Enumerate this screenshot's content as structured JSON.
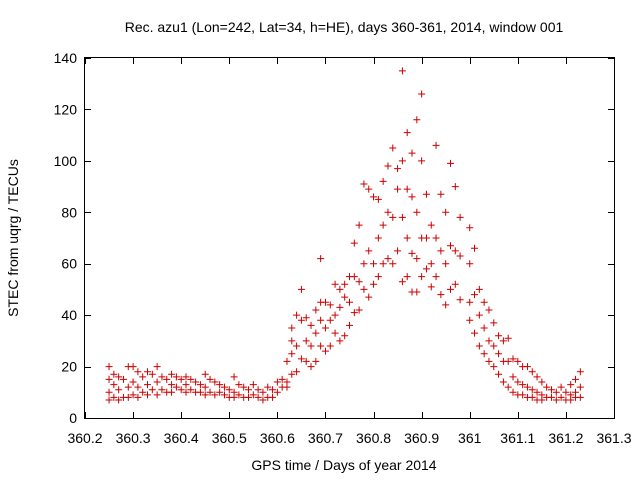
{
  "chart_data": {
    "type": "scatter",
    "title": "Rec. azu1 (Lon=242, Lat=34, h=HE), days 360-361, 2014, window 001",
    "xlabel": "GPS time / Days of year 2014",
    "ylabel": "STEC from uqrg / TECUs",
    "xlim": [
      360.2,
      361.3
    ],
    "ylim": [
      0,
      140
    ],
    "xticks": [
      360.2,
      360.3,
      360.4,
      360.5,
      360.6,
      360.7,
      360.8,
      360.9,
      361,
      361.1,
      361.2,
      361.3
    ],
    "xtick_labels": [
      "360.2",
      "360.3",
      "360.4",
      "360.5",
      "360.6",
      "360.7",
      "360.8",
      "360.9",
      "361",
      "361.1",
      "361.2",
      "361.3"
    ],
    "yticks": [
      0,
      20,
      40,
      60,
      80,
      100,
      120,
      140
    ],
    "ytick_labels": [
      "0",
      "20",
      "40",
      "60",
      "80",
      "100",
      "120",
      "140"
    ],
    "grid": false,
    "legend": "none",
    "marker": "plus",
    "color": "#cc0000",
    "series": [
      {
        "name": "STEC",
        "points": [
          [
            360.25,
            20
          ],
          [
            360.25,
            15
          ],
          [
            360.25,
            10
          ],
          [
            360.25,
            7
          ],
          [
            360.26,
            17
          ],
          [
            360.26,
            13
          ],
          [
            360.26,
            8
          ],
          [
            360.27,
            16
          ],
          [
            360.27,
            11
          ],
          [
            360.27,
            7
          ],
          [
            360.28,
            15
          ],
          [
            360.28,
            8
          ],
          [
            360.29,
            20
          ],
          [
            360.29,
            12
          ],
          [
            360.29,
            8
          ],
          [
            360.3,
            20
          ],
          [
            360.3,
            14
          ],
          [
            360.3,
            9
          ],
          [
            360.31,
            18
          ],
          [
            360.31,
            12
          ],
          [
            360.31,
            8
          ],
          [
            360.32,
            16
          ],
          [
            360.32,
            10
          ],
          [
            360.33,
            18
          ],
          [
            360.33,
            13
          ],
          [
            360.33,
            9
          ],
          [
            360.34,
            17
          ],
          [
            360.34,
            11
          ],
          [
            360.35,
            20
          ],
          [
            360.35,
            14
          ],
          [
            360.35,
            9
          ],
          [
            360.36,
            16
          ],
          [
            360.36,
            11
          ],
          [
            360.37,
            15
          ],
          [
            360.37,
            10
          ],
          [
            360.38,
            17
          ],
          [
            360.38,
            13
          ],
          [
            360.38,
            10
          ],
          [
            360.39,
            16
          ],
          [
            360.39,
            12
          ],
          [
            360.4,
            15
          ],
          [
            360.4,
            11
          ],
          [
            360.41,
            16
          ],
          [
            360.41,
            13
          ],
          [
            360.41,
            10
          ],
          [
            360.42,
            15
          ],
          [
            360.42,
            11
          ],
          [
            360.43,
            14
          ],
          [
            360.43,
            10
          ],
          [
            360.44,
            13
          ],
          [
            360.44,
            10
          ],
          [
            360.45,
            17
          ],
          [
            360.45,
            12
          ],
          [
            360.45,
            9
          ],
          [
            360.46,
            15
          ],
          [
            360.46,
            10
          ],
          [
            360.47,
            14
          ],
          [
            360.47,
            9
          ],
          [
            360.48,
            13
          ],
          [
            360.48,
            10
          ],
          [
            360.49,
            12
          ],
          [
            360.49,
            9
          ],
          [
            360.5,
            11
          ],
          [
            360.5,
            8
          ],
          [
            360.51,
            16
          ],
          [
            360.51,
            10
          ],
          [
            360.51,
            8
          ],
          [
            360.52,
            13
          ],
          [
            360.52,
            9
          ],
          [
            360.53,
            12
          ],
          [
            360.53,
            8
          ],
          [
            360.54,
            11
          ],
          [
            360.54,
            8
          ],
          [
            360.55,
            13
          ],
          [
            360.55,
            9
          ],
          [
            360.56,
            11
          ],
          [
            360.56,
            8
          ],
          [
            360.57,
            10
          ],
          [
            360.57,
            7
          ],
          [
            360.58,
            12
          ],
          [
            360.58,
            8
          ],
          [
            360.59,
            11
          ],
          [
            360.59,
            8
          ],
          [
            360.6,
            14
          ],
          [
            360.6,
            10
          ],
          [
            360.61,
            15
          ],
          [
            360.61,
            12
          ],
          [
            360.62,
            22
          ],
          [
            360.62,
            14
          ],
          [
            360.62,
            12
          ],
          [
            360.63,
            35
          ],
          [
            360.63,
            30
          ],
          [
            360.63,
            25
          ],
          [
            360.63,
            17
          ],
          [
            360.64,
            40
          ],
          [
            360.64,
            28
          ],
          [
            360.64,
            18
          ],
          [
            360.65,
            50
          ],
          [
            360.65,
            38
          ],
          [
            360.65,
            23
          ],
          [
            360.66,
            39
          ],
          [
            360.66,
            30
          ],
          [
            360.66,
            22
          ],
          [
            360.67,
            36
          ],
          [
            360.67,
            28
          ],
          [
            360.67,
            20
          ],
          [
            360.68,
            42
          ],
          [
            360.68,
            33
          ],
          [
            360.68,
            22
          ],
          [
            360.69,
            62
          ],
          [
            360.69,
            45
          ],
          [
            360.69,
            38
          ],
          [
            360.69,
            28
          ],
          [
            360.7,
            45
          ],
          [
            360.7,
            35
          ],
          [
            360.7,
            26
          ],
          [
            360.71,
            44
          ],
          [
            360.71,
            38
          ],
          [
            360.71,
            28
          ],
          [
            360.72,
            52
          ],
          [
            360.72,
            40
          ],
          [
            360.72,
            33
          ],
          [
            360.73,
            50
          ],
          [
            360.73,
            43
          ],
          [
            360.73,
            30
          ],
          [
            360.74,
            52
          ],
          [
            360.74,
            47
          ],
          [
            360.74,
            32
          ],
          [
            360.75,
            55
          ],
          [
            360.75,
            45
          ],
          [
            360.75,
            36
          ],
          [
            360.76,
            68
          ],
          [
            360.76,
            55
          ],
          [
            360.76,
            41
          ],
          [
            360.77,
            75
          ],
          [
            360.77,
            53
          ],
          [
            360.77,
            42
          ],
          [
            360.78,
            91
          ],
          [
            360.78,
            60
          ],
          [
            360.78,
            50
          ],
          [
            360.79,
            89
          ],
          [
            360.79,
            65
          ],
          [
            360.79,
            47
          ],
          [
            360.8,
            86
          ],
          [
            360.8,
            60
          ],
          [
            360.8,
            52
          ],
          [
            360.81,
            85
          ],
          [
            360.81,
            70
          ],
          [
            360.81,
            55
          ],
          [
            360.82,
            92
          ],
          [
            360.82,
            75
          ],
          [
            360.82,
            60
          ],
          [
            360.83,
            98
          ],
          [
            360.83,
            80
          ],
          [
            360.83,
            62
          ],
          [
            360.84,
            105
          ],
          [
            360.84,
            78
          ],
          [
            360.84,
            60
          ],
          [
            360.85,
            97
          ],
          [
            360.85,
            89
          ],
          [
            360.85,
            65
          ],
          [
            360.86,
            135
          ],
          [
            360.86,
            100
          ],
          [
            360.86,
            78
          ],
          [
            360.86,
            53
          ],
          [
            360.87,
            111
          ],
          [
            360.87,
            89
          ],
          [
            360.87,
            70
          ],
          [
            360.87,
            55
          ],
          [
            360.88,
            103
          ],
          [
            360.88,
            86
          ],
          [
            360.88,
            64
          ],
          [
            360.88,
            49
          ],
          [
            360.89,
            116
          ],
          [
            360.89,
            80
          ],
          [
            360.89,
            62
          ],
          [
            360.89,
            49
          ],
          [
            360.9,
            126
          ],
          [
            360.9,
            100
          ],
          [
            360.9,
            70
          ],
          [
            360.9,
            55
          ],
          [
            360.91,
            87
          ],
          [
            360.91,
            70
          ],
          [
            360.91,
            58
          ],
          [
            360.92,
            75
          ],
          [
            360.92,
            60
          ],
          [
            360.92,
            51
          ],
          [
            360.93,
            106
          ],
          [
            360.93,
            70
          ],
          [
            360.93,
            55
          ],
          [
            360.94,
            87
          ],
          [
            360.94,
            65
          ],
          [
            360.94,
            48
          ],
          [
            360.95,
            80
          ],
          [
            360.95,
            60
          ],
          [
            360.95,
            44
          ],
          [
            360.96,
            99
          ],
          [
            360.96,
            67
          ],
          [
            360.96,
            50
          ],
          [
            360.97,
            90
          ],
          [
            360.97,
            65
          ],
          [
            360.97,
            52
          ],
          [
            360.98,
            78
          ],
          [
            360.98,
            63
          ],
          [
            360.98,
            46
          ],
          [
            361.0,
            74
          ],
          [
            361.0,
            60
          ],
          [
            361.0,
            45
          ],
          [
            361.0,
            38
          ],
          [
            361.01,
            66
          ],
          [
            361.01,
            48
          ],
          [
            361.01,
            33
          ],
          [
            361.02,
            50
          ],
          [
            361.02,
            40
          ],
          [
            361.02,
            28
          ],
          [
            361.03,
            45
          ],
          [
            361.03,
            35
          ],
          [
            361.03,
            25
          ],
          [
            361.04,
            42
          ],
          [
            361.04,
            30
          ],
          [
            361.04,
            22
          ],
          [
            361.05,
            37
          ],
          [
            361.05,
            28
          ],
          [
            361.05,
            20
          ],
          [
            361.06,
            32
          ],
          [
            361.06,
            25
          ],
          [
            361.06,
            17
          ],
          [
            361.07,
            30
          ],
          [
            361.07,
            22
          ],
          [
            361.07,
            14
          ],
          [
            361.08,
            31
          ],
          [
            361.08,
            22
          ],
          [
            361.08,
            12
          ],
          [
            361.09,
            23
          ],
          [
            361.09,
            16
          ],
          [
            361.09,
            10
          ],
          [
            361.1,
            22
          ],
          [
            361.1,
            14
          ],
          [
            361.1,
            9
          ],
          [
            361.11,
            20
          ],
          [
            361.11,
            13
          ],
          [
            361.11,
            9
          ],
          [
            361.12,
            20
          ],
          [
            361.12,
            12
          ],
          [
            361.12,
            8
          ],
          [
            361.13,
            18
          ],
          [
            361.13,
            11
          ],
          [
            361.13,
            8
          ],
          [
            361.14,
            16
          ],
          [
            361.14,
            10
          ],
          [
            361.14,
            7
          ],
          [
            361.15,
            14
          ],
          [
            361.15,
            9
          ],
          [
            361.15,
            7
          ],
          [
            361.16,
            12
          ],
          [
            361.16,
            8
          ],
          [
            361.17,
            11
          ],
          [
            361.17,
            8
          ],
          [
            361.18,
            10
          ],
          [
            361.18,
            7
          ],
          [
            361.19,
            12
          ],
          [
            361.19,
            8
          ],
          [
            361.2,
            10
          ],
          [
            361.2,
            7
          ],
          [
            361.21,
            13
          ],
          [
            361.21,
            9
          ],
          [
            361.21,
            7
          ],
          [
            361.22,
            15
          ],
          [
            361.22,
            10
          ],
          [
            361.22,
            8
          ],
          [
            361.23,
            18
          ],
          [
            361.23,
            12
          ],
          [
            361.23,
            8
          ]
        ]
      }
    ]
  }
}
